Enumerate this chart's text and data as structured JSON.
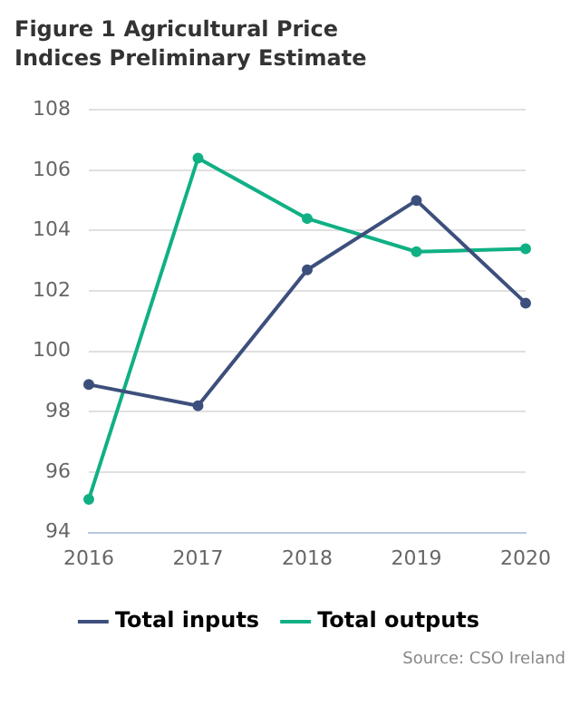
{
  "chart_data": {
    "type": "line",
    "title": "Figure 1 Agricultural Price Indices Preliminary Estimate",
    "categories": [
      "2016",
      "2017",
      "2018",
      "2019",
      "2020"
    ],
    "series": [
      {
        "name": "Total inputs",
        "color": "#3d4f7c",
        "values": [
          98.9,
          98.2,
          102.7,
          105.0,
          101.6
        ]
      },
      {
        "name": "Total outputs",
        "color": "#10b084",
        "values": [
          95.1,
          106.4,
          104.4,
          103.3,
          103.4
        ]
      }
    ],
    "ylim": [
      94,
      108
    ],
    "yticks": [
      94,
      96,
      98,
      100,
      102,
      104,
      106,
      108
    ],
    "grid": "y",
    "legend": "bottom",
    "marker": "circle",
    "line_style": "solid",
    "annotations": [
      "Source: CSO Ireland"
    ]
  }
}
